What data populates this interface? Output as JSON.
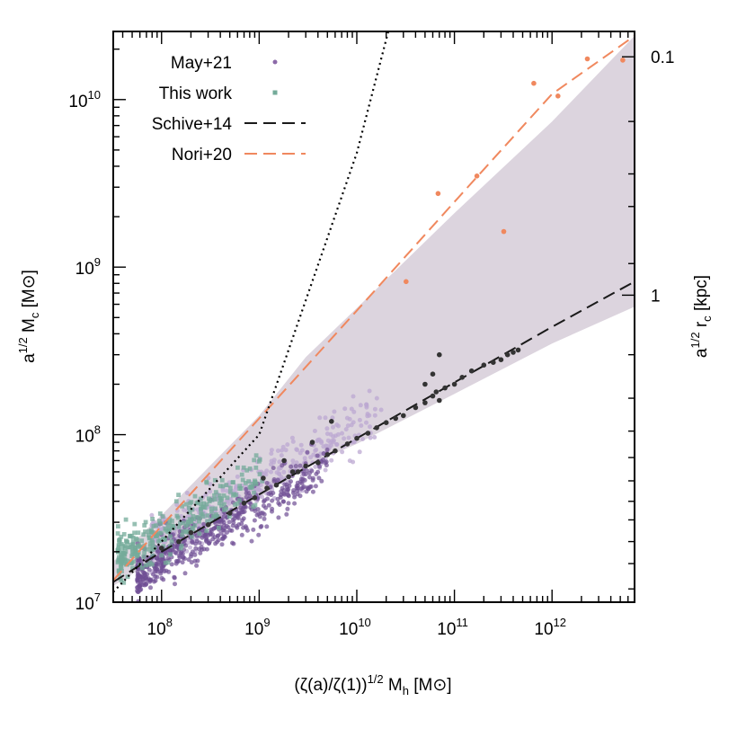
{
  "chart_data": {
    "type": "scatter",
    "xlabel": "(ζ(a)/ζ(1))^1/2 Mh [M⊙]",
    "ylabel": "a^1/2 Mc [M⊙]",
    "y2label": "a^1/2 rc [kpc]",
    "xscale": "log",
    "yscale": "log",
    "xlim": [
      32000000.0,
      7000000000000.0
    ],
    "ylim": [
      10000000.0,
      25500000000.0
    ],
    "x_ticks": [
      {
        "value": 100000000.0,
        "base": "10",
        "exp": "8"
      },
      {
        "value": 1000000000.0,
        "base": "10",
        "exp": "9"
      },
      {
        "value": 10000000000.0,
        "base": "10",
        "exp": "10"
      },
      {
        "value": 100000000000.0,
        "base": "10",
        "exp": "11"
      },
      {
        "value": 1000000000000.0,
        "base": "10",
        "exp": "12"
      }
    ],
    "y_ticks": [
      {
        "value": 10000000.0,
        "base": "10",
        "exp": "7"
      },
      {
        "value": 100000000.0,
        "base": "10",
        "exp": "8"
      },
      {
        "value": 1000000000.0,
        "base": "10",
        "exp": "9"
      },
      {
        "value": 10000000000.0,
        "base": "10",
        "exp": "10"
      }
    ],
    "y2_ticks": [
      {
        "label": "0.1",
        "at_y": 18000000000.0
      },
      {
        "label": "1",
        "at_y": 680000000.0
      }
    ],
    "legend": [
      {
        "label": "May+21",
        "kind": "dot",
        "color": "#8b69a8"
      },
      {
        "label": "This work",
        "kind": "square",
        "color": "#74ab9a"
      },
      {
        "label": "Schive+14",
        "kind": "dash",
        "color": "#1a1a1a"
      },
      {
        "label": "Nori+20",
        "kind": "dash",
        "color": "#f0885e"
      }
    ],
    "series": [
      {
        "name": "Schive+14",
        "kind": "line",
        "style": "dashed",
        "color": "#1a1a1a",
        "x": [
          32000000.0,
          100000000.0,
          1000000000.0,
          10000000000.0,
          100000000000.0,
          1000000000000.0,
          7000000000000.0
        ],
        "y": [
          13200000.0,
          20000000.0,
          44000000.0,
          95000000.0,
          205000000.0,
          440000000.0,
          820000000.0
        ]
      },
      {
        "name": "Nori+20",
        "kind": "line",
        "style": "dashed",
        "color": "#f0885e",
        "x": [
          32000000.0,
          100000000.0,
          1000000000.0,
          10000000000.0,
          100000000000.0,
          1000000000000.0,
          7000000000000.0
        ],
        "y": [
          13500000.0,
          28500000.0,
          125000000.0,
          550000000.0,
          2450000000.0,
          10800000000.0,
          24000000000.0
        ]
      },
      {
        "name": "",
        "kind": "line",
        "style": "dotted",
        "color": "#000000",
        "x": [
          32000000.0,
          100000000.0,
          1000000000.0,
          10000000000.0,
          21000000000.0
        ],
        "y": [
          11500000.0,
          23000000.0,
          100000000.0,
          4800000000.0,
          25500000000.0
        ]
      },
      {
        "name": "",
        "kind": "band",
        "color": "#dcd4de",
        "x": [
          32000000.0,
          100000000.0,
          1000000000.0,
          3000000000.0,
          10000000000.0,
          100000000000.0,
          1000000000000.0,
          7000000000000.0
        ],
        "upper": [
          17500000.0,
          33000000.0,
          130000000.0,
          290000000.0,
          570000000.0,
          2100000000.0,
          7400000000.0,
          24000000000.0
        ],
        "lower": [
          12500000.0,
          19000000.0,
          42000000.0,
          65000000.0,
          88000000.0,
          175000000.0,
          350000000.0,
          580000000.0
        ]
      },
      {
        "name": "Schive+14 sample",
        "kind": "points",
        "color": "#333333",
        "x": [
          100000000.0,
          150000000.0,
          200000000.0,
          300000000.0,
          500000000.0,
          700000000.0,
          900000000.0,
          1200000000.0,
          1500000000.0,
          2000000000.0,
          2500000000.0,
          3000000000.0,
          4000000000.0,
          5000000000.0,
          6000000000.0,
          8000000000.0,
          10000000000.0,
          13000000000.0,
          16000000000.0,
          20000000000.0,
          25000000000.0,
          30000000000.0,
          40000000000.0,
          50000000000.0,
          60000000000.0,
          65000000000.0,
          70000000000.0,
          80000000000.0,
          100000000000.0,
          120000000000.0,
          150000000000.0,
          200000000000.0,
          250000000000.0,
          300000000000.0,
          350000000000.0,
          400000000000.0,
          450000000000.0,
          50000000000.0,
          60000000000.0,
          70000000000.0,
          5500000000.0,
          3500000000.0,
          2200000000.0,
          1800000000.0,
          1100000000.0
        ],
        "y": [
          21000000.0,
          23000000.0,
          26000000.0,
          29000000.0,
          34000000.0,
          39000000.0,
          42000000.0,
          48000000.0,
          50000000.0,
          56000000.0,
          60000000.0,
          65000000.0,
          68000000.0,
          76000000.0,
          80000000.0,
          88000000.0,
          95000000.0,
          102000000.0,
          110000000.0,
          118000000.0,
          125000000.0,
          130000000.0,
          145000000.0,
          155000000.0,
          170000000.0,
          180000000.0,
          160000000.0,
          190000000.0,
          200000000.0,
          220000000.0,
          240000000.0,
          260000000.0,
          270000000.0,
          280000000.0,
          300000000.0,
          310000000.0,
          320000000.0,
          200000000.0,
          230000000.0,
          300000000.0,
          120000000.0,
          90000000.0,
          60000000.0,
          70000000.0,
          55000000.0
        ]
      },
      {
        "name": "Nori+20 sample",
        "kind": "points",
        "color": "#f0885e",
        "x": [
          32000000000.0,
          68000000000.0,
          170000000000.0,
          320000000000.0,
          650000000000.0,
          1150000000000.0,
          2300000000000.0,
          5300000000000.0
        ],
        "y": [
          820000000.0,
          2750000000.0,
          3500000000.0,
          1630000000.0,
          12500000000.0,
          10500000000.0,
          17500000000.0,
          17200000000.0
        ]
      }
    ]
  }
}
